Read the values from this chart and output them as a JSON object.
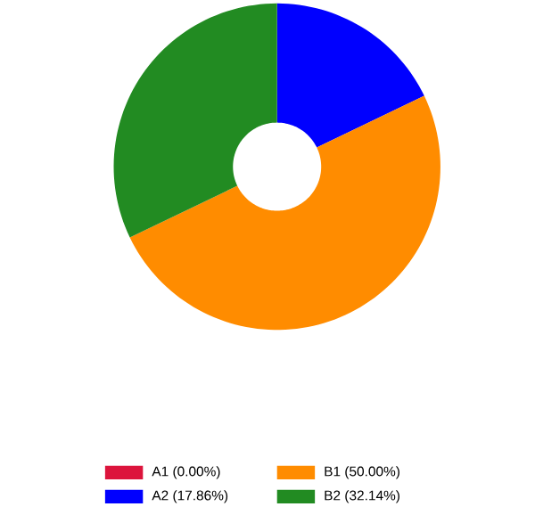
{
  "chart_data": {
    "type": "donut",
    "categories": [
      "A1",
      "A2",
      "B1",
      "B2"
    ],
    "values": [
      0.0,
      17.86,
      50.0,
      32.14
    ],
    "value_labels": [
      "(0.00%)",
      "(17.86%)",
      "(50.00%)",
      "(32.14%)"
    ],
    "colors": [
      "#dc143c",
      "#0000ff",
      "#ff8c00",
      "#228b22"
    ],
    "legend": "bottom"
  }
}
